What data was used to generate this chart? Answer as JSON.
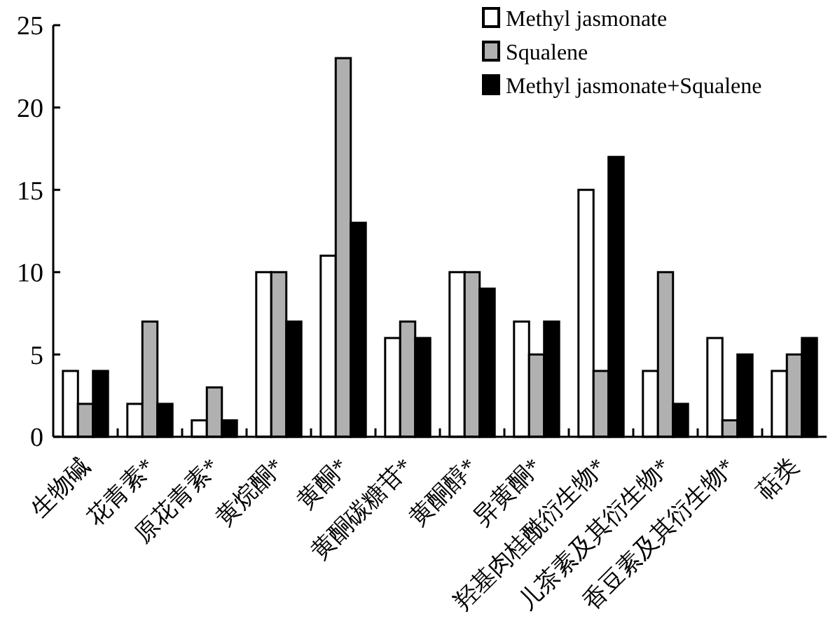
{
  "chart_data": {
    "type": "bar",
    "categories": [
      "生物碱",
      "花青素*",
      "原花青素*",
      "黄烷酮*",
      "黄酮*",
      "黄酮碳糖苷*",
      "黄酮醇*",
      "异黄酮*",
      "羟基肉桂酰衍生物*",
      "儿茶素及其衍生物*",
      "香豆素及其衍生物*",
      "萜类"
    ],
    "series": [
      {
        "name": "Methyl jasmonate",
        "color": "#ffffff",
        "values": [
          4,
          2,
          1,
          10,
          11,
          6,
          10,
          7,
          15,
          4,
          6,
          4
        ]
      },
      {
        "name": "Squalene",
        "color": "#b0b0b0",
        "values": [
          2,
          7,
          3,
          10,
          23,
          7,
          10,
          5,
          4,
          10,
          1,
          5
        ]
      },
      {
        "name": "Methyl jasmonate+Squalene",
        "color": "#000000",
        "values": [
          4,
          2,
          1,
          7,
          13,
          6,
          9,
          7,
          17,
          2,
          5,
          6
        ]
      }
    ],
    "ylim": [
      0,
      25
    ],
    "yticks": [
      0,
      5,
      10,
      15,
      20,
      25
    ],
    "grid": false,
    "legend": "top right"
  }
}
